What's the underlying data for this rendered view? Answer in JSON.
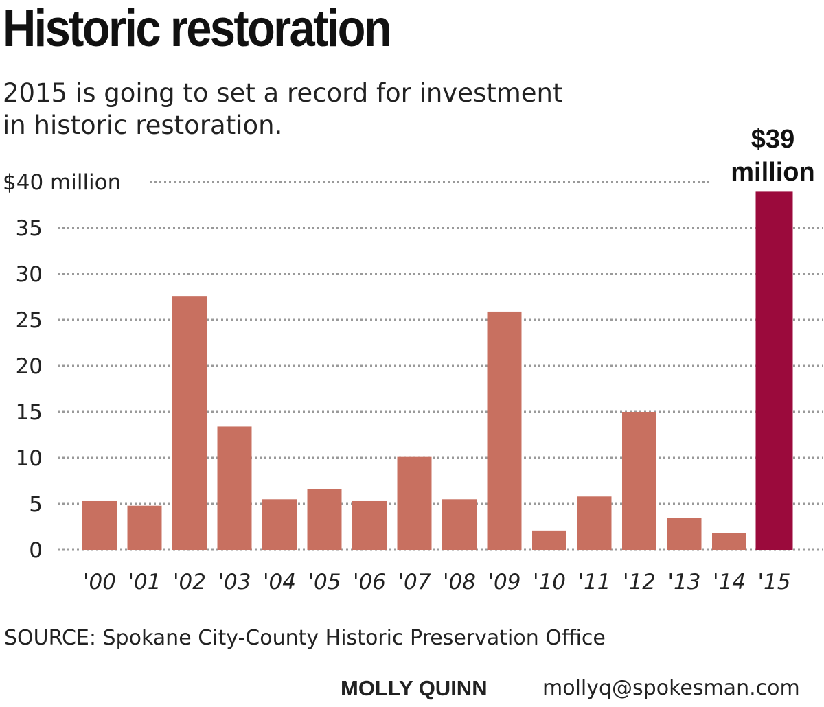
{
  "title": "Historic restoration",
  "subtitle": "2015 is going to set a record for investment in historic restoration.",
  "source": "SOURCE: Spokane City-County Historic Preservation Office",
  "credit": {
    "name": "MOLLY QUINN",
    "email": "mollyq@spokesman.com"
  },
  "colors": {
    "bar": "#c87060",
    "highlight": "#9b0a3c",
    "grid": "#9a9a9a",
    "text": "#222222"
  },
  "chart_data": {
    "type": "bar",
    "categories": [
      "'00",
      "'01",
      "'02",
      "'03",
      "'04",
      "'05",
      "'06",
      "'07",
      "'08",
      "'09",
      "'10",
      "'11",
      "'12",
      "'13",
      "'14",
      "'15"
    ],
    "values": [
      5.3,
      4.8,
      27.6,
      13.4,
      5.5,
      6.6,
      5.3,
      10.1,
      5.5,
      25.9,
      2.1,
      5.8,
      15,
      3.5,
      1.8,
      39
    ],
    "highlight_index": 15,
    "highlight_label": [
      "$39",
      "million"
    ],
    "y_ticks": [
      "0",
      "5",
      "10",
      "15",
      "20",
      "25",
      "30",
      "35",
      "$40 million"
    ],
    "ylim": [
      0,
      40
    ],
    "grid": "dotted horizontal",
    "legend": "none"
  }
}
